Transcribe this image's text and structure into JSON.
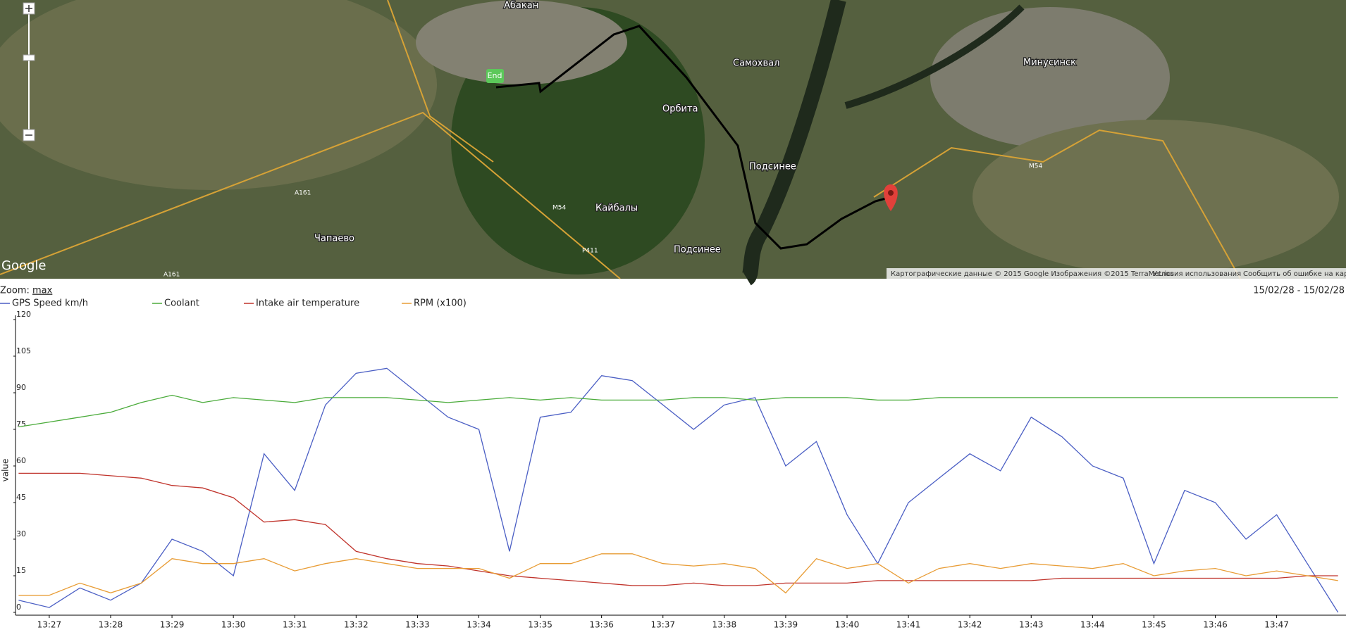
{
  "map": {
    "places": [
      "Абакан",
      "Минусинск",
      "Самохвал",
      "Орбита",
      "Подсинее",
      "Кайбалы",
      "Подсинее",
      "Чапаево"
    ],
    "roads": [
      "A161",
      "M54",
      "P411",
      "M54",
      "A161"
    ],
    "end_marker": "End",
    "logo": "Google",
    "attribution": [
      "Картографические данные © 2015 Google Изображения ©2015 TerraMetrics",
      "Условия использования",
      "Сообщить об ошибке на карте"
    ]
  },
  "toolbar": {
    "zoom_label": "Zoom:",
    "zoom_value": "max",
    "date_range": "15/02/28 - 15/02/28"
  },
  "chart_data": {
    "type": "line",
    "y_label": "value",
    "x": [
      26.5,
      27,
      27.5,
      28,
      28.5,
      29,
      29.5,
      30,
      30.5,
      31,
      31.5,
      32,
      32.5,
      33,
      33.5,
      34,
      34.5,
      35,
      35.5,
      36,
      36.5,
      37,
      37.5,
      38,
      38.5,
      39,
      39.5,
      40,
      40.5,
      41,
      41.5,
      42,
      42.5,
      43,
      43.5,
      44,
      44.5,
      45,
      45.5,
      46,
      46.5,
      47,
      47.5,
      48
    ],
    "xlim": [
      26.45,
      48.13
    ],
    "xticks": [
      {
        "value": 27,
        "label": "13:27"
      },
      {
        "value": 28,
        "label": "13:28"
      },
      {
        "value": 29,
        "label": "13:29"
      },
      {
        "value": 30,
        "label": "13:30"
      },
      {
        "value": 31,
        "label": "13:31"
      },
      {
        "value": 32,
        "label": "13:32"
      },
      {
        "value": 33,
        "label": "13:33"
      },
      {
        "value": 34,
        "label": "13:34"
      },
      {
        "value": 35,
        "label": "13:35"
      },
      {
        "value": 36,
        "label": "13:36"
      },
      {
        "value": 37,
        "label": "13:37"
      },
      {
        "value": 38,
        "label": "13:38"
      },
      {
        "value": 39,
        "label": "13:39"
      },
      {
        "value": 40,
        "label": "13:40"
      },
      {
        "value": 41,
        "label": "13:41"
      },
      {
        "value": 42,
        "label": "13:42"
      },
      {
        "value": 43,
        "label": "13:43"
      },
      {
        "value": 44,
        "label": "13:44"
      },
      {
        "value": 45,
        "label": "13:45"
      },
      {
        "value": 46,
        "label": "13:46"
      },
      {
        "value": 47,
        "label": "13:47"
      }
    ],
    "ylim": [
      0,
      120
    ],
    "yticks": [
      0,
      15,
      30,
      45,
      60,
      75,
      90,
      105,
      120
    ],
    "series": [
      {
        "name": "GPS Speed km/h",
        "color": "#4a5ec4",
        "values": [
          5,
          2,
          10,
          5,
          12,
          30,
          25,
          15,
          65,
          50,
          85,
          98,
          100,
          90,
          80,
          75,
          25,
          80,
          82,
          97,
          95,
          85,
          75,
          85,
          88,
          60,
          70,
          40,
          20,
          45,
          55,
          65,
          58,
          80,
          72,
          60,
          55,
          20,
          50,
          45,
          30,
          40,
          20,
          0
        ]
      },
      {
        "name": "Coolant",
        "color": "#4aab3a",
        "values": [
          76,
          78,
          80,
          82,
          86,
          89,
          86,
          88,
          87,
          86,
          88,
          88,
          88,
          87,
          86,
          87,
          88,
          87,
          88,
          87,
          87,
          87,
          88,
          88,
          87,
          88,
          88,
          88,
          87,
          87,
          88,
          88,
          88,
          88,
          88,
          88,
          88,
          88,
          88,
          88,
          88,
          88,
          88,
          88
        ]
      },
      {
        "name": "Intake air temperature",
        "color": "#c0332b",
        "values": [
          57,
          57,
          57,
          56,
          55,
          52,
          51,
          47,
          37,
          38,
          36,
          25,
          22,
          20,
          19,
          17,
          15,
          14,
          13,
          12,
          11,
          11,
          12,
          11,
          11,
          12,
          12,
          12,
          13,
          13,
          13,
          13,
          13,
          13,
          14,
          14,
          14,
          14,
          14,
          14,
          14,
          14,
          15,
          15
        ]
      },
      {
        "name": "RPM (x100)",
        "color": "#e89c35",
        "values": [
          7,
          7,
          12,
          8,
          12,
          22,
          20,
          20,
          22,
          17,
          20,
          22,
          20,
          18,
          18,
          18,
          14,
          20,
          20,
          24,
          24,
          20,
          19,
          20,
          18,
          8,
          22,
          18,
          20,
          12,
          18,
          20,
          18,
          20,
          19,
          18,
          20,
          15,
          17,
          18,
          15,
          17,
          15,
          13
        ]
      }
    ]
  }
}
